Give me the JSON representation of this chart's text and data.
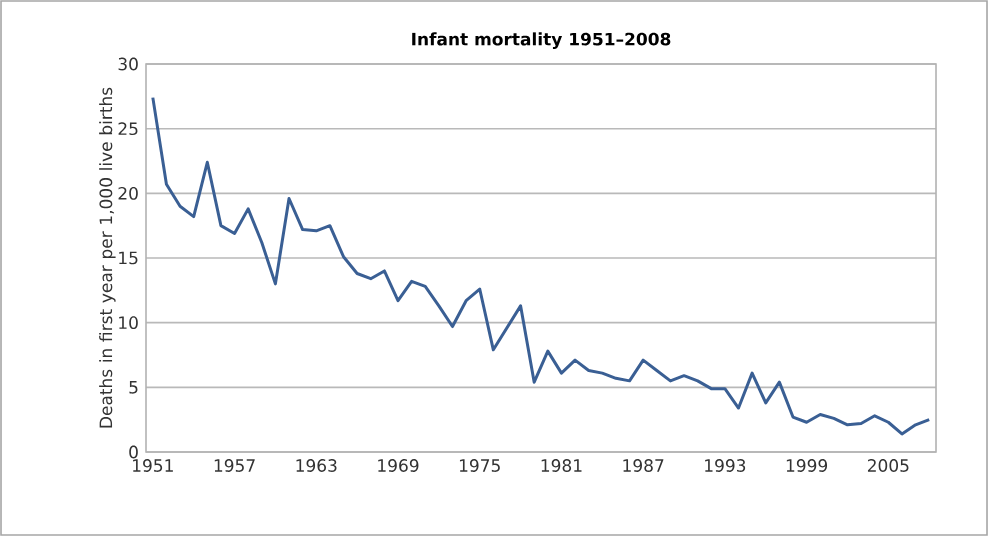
{
  "chart_data": {
    "type": "line",
    "title": "Infant mortality 1951–2008",
    "ylabel": "Deaths in first year per 1,000 live births",
    "x": [
      1951,
      1952,
      1953,
      1954,
      1955,
      1956,
      1957,
      1958,
      1959,
      1960,
      1961,
      1962,
      1963,
      1964,
      1965,
      1966,
      1967,
      1968,
      1969,
      1970,
      1971,
      1972,
      1973,
      1974,
      1975,
      1976,
      1977,
      1978,
      1979,
      1980,
      1981,
      1982,
      1983,
      1984,
      1985,
      1986,
      1987,
      1988,
      1989,
      1990,
      1991,
      1992,
      1993,
      1994,
      1995,
      1996,
      1997,
      1998,
      1999,
      2000,
      2001,
      2002,
      2003,
      2004,
      2005,
      2006,
      2007,
      2008
    ],
    "series": [
      {
        "color": "#3a5f94",
        "values": [
          27.4,
          20.7,
          19.0,
          18.2,
          22.4,
          17.5,
          16.9,
          18.8,
          16.2,
          13.0,
          19.6,
          17.2,
          17.1,
          17.5,
          15.1,
          13.8,
          13.4,
          14.0,
          11.7,
          13.2,
          12.8,
          11.3,
          9.7,
          11.7,
          12.6,
          7.9,
          9.6,
          11.3,
          5.4,
          7.8,
          6.1,
          7.1,
          6.3,
          6.1,
          5.7,
          5.5,
          7.1,
          6.3,
          5.5,
          5.9,
          5.5,
          4.9,
          4.9,
          3.4,
          6.1,
          3.8,
          5.4,
          2.7,
          2.3,
          2.9,
          2.6,
          2.1,
          2.2,
          2.8,
          2.3,
          1.4,
          2.1,
          2.5
        ]
      }
    ],
    "xlim": [
      1950.5,
      2008.5
    ],
    "ylim": [
      0,
      30
    ],
    "xticks": [
      1951,
      1957,
      1963,
      1969,
      1975,
      1981,
      1987,
      1993,
      1999,
      2005
    ],
    "yticks": [
      0,
      5,
      10,
      15,
      20,
      25,
      30
    ],
    "grid": "y",
    "marker": "none",
    "line_style": "solid"
  }
}
